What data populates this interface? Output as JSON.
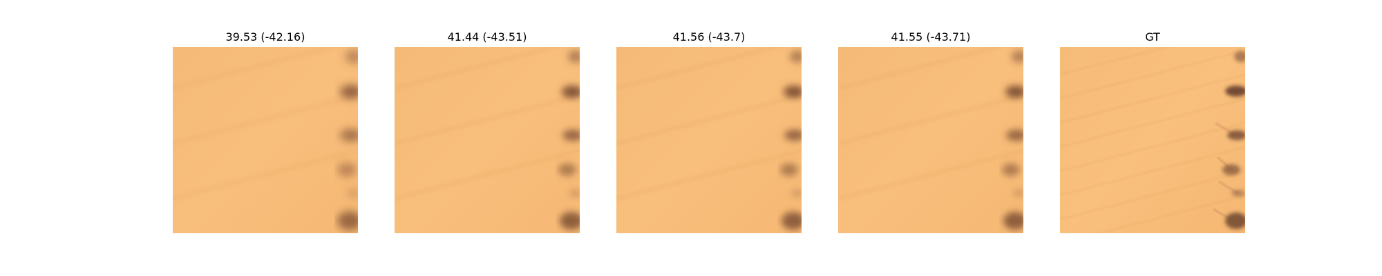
{
  "panels": [
    {
      "title": "39.53 (-42.16)",
      "image": "desert-sand-dunes-reconstruction"
    },
    {
      "title": "41.44 (-43.51)",
      "image": "desert-sand-dunes-reconstruction"
    },
    {
      "title": "41.56 (-43.7)",
      "image": "desert-sand-dunes-reconstruction"
    },
    {
      "title": "41.55 (-43.71)",
      "image": "desert-sand-dunes-reconstruction"
    },
    {
      "title": "GT",
      "image": "desert-sand-dunes-ground-truth"
    }
  ],
  "colors": {
    "sand": "#f7bb78",
    "sand_light": "#fac487",
    "sand_shadow": "#e8a864",
    "dune_dark": "#7a4e34"
  }
}
